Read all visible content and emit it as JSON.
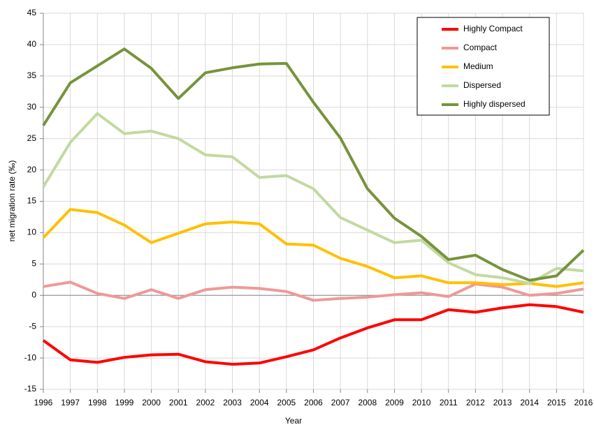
{
  "chart_data": {
    "type": "line",
    "x": [
      1996,
      1997,
      1998,
      1999,
      2000,
      2001,
      2002,
      2003,
      2004,
      2005,
      2006,
      2007,
      2008,
      2009,
      2010,
      2011,
      2012,
      2013,
      2014,
      2015,
      2016
    ],
    "xlim": [
      1996,
      2016
    ],
    "xticks": [
      1996,
      1997,
      1998,
      1999,
      2000,
      2001,
      2002,
      2003,
      2004,
      2005,
      2006,
      2007,
      2008,
      2009,
      2010,
      2011,
      2012,
      2013,
      2014,
      2015,
      2016
    ],
    "ylim": [
      -15,
      45
    ],
    "yticks": [
      -15,
      -10,
      -5,
      0,
      5,
      10,
      15,
      20,
      25,
      30,
      35,
      40,
      45
    ],
    "xlabel": "Year",
    "ylabel": "net migration rate (‰)",
    "grid": true,
    "legend": "upper right",
    "series": [
      {
        "name": "Highly Compact",
        "color": "#ff0000",
        "values": [
          -7.2,
          -10.3,
          -10.7,
          -9.9,
          -9.5,
          -9.4,
          -10.6,
          -11.0,
          -10.8,
          -9.8,
          -8.7,
          -6.8,
          -5.2,
          -3.9,
          -3.9,
          -2.3,
          -2.7,
          -2.0,
          -1.5,
          -1.8,
          -2.7
        ]
      },
      {
        "name": "Compact",
        "color": "#ee9999",
        "values": [
          1.4,
          2.1,
          0.3,
          -0.5,
          0.9,
          -0.5,
          0.9,
          1.3,
          1.1,
          0.6,
          -0.8,
          -0.5,
          -0.3,
          0.1,
          0.4,
          -0.2,
          1.8,
          1.3,
          0.0,
          0.3,
          1.0
        ]
      },
      {
        "name": "Medium",
        "color": "#ffc000",
        "values": [
          9.2,
          13.7,
          13.2,
          11.2,
          8.4,
          9.9,
          11.4,
          11.7,
          11.4,
          8.2,
          8.0,
          5.9,
          4.6,
          2.8,
          3.1,
          2.0,
          2.0,
          1.7,
          1.9,
          1.4,
          2.0
        ]
      },
      {
        "name": "Dispersed",
        "color": "#c3d9a0",
        "values": [
          17.3,
          24.4,
          29.0,
          25.8,
          26.2,
          25.0,
          22.4,
          22.1,
          18.8,
          19.1,
          17.0,
          12.4,
          10.4,
          8.4,
          8.8,
          5.2,
          3.3,
          2.8,
          1.9,
          4.3,
          3.9
        ]
      },
      {
        "name": "Highly dispersed",
        "color": "#77933c",
        "values": [
          27.1,
          33.9,
          36.6,
          39.3,
          36.2,
          31.4,
          35.5,
          36.3,
          36.9,
          37.0,
          30.8,
          25.1,
          17.0,
          12.3,
          9.4,
          5.7,
          6.4,
          4.1,
          2.4,
          3.1,
          7.2
        ]
      }
    ]
  }
}
